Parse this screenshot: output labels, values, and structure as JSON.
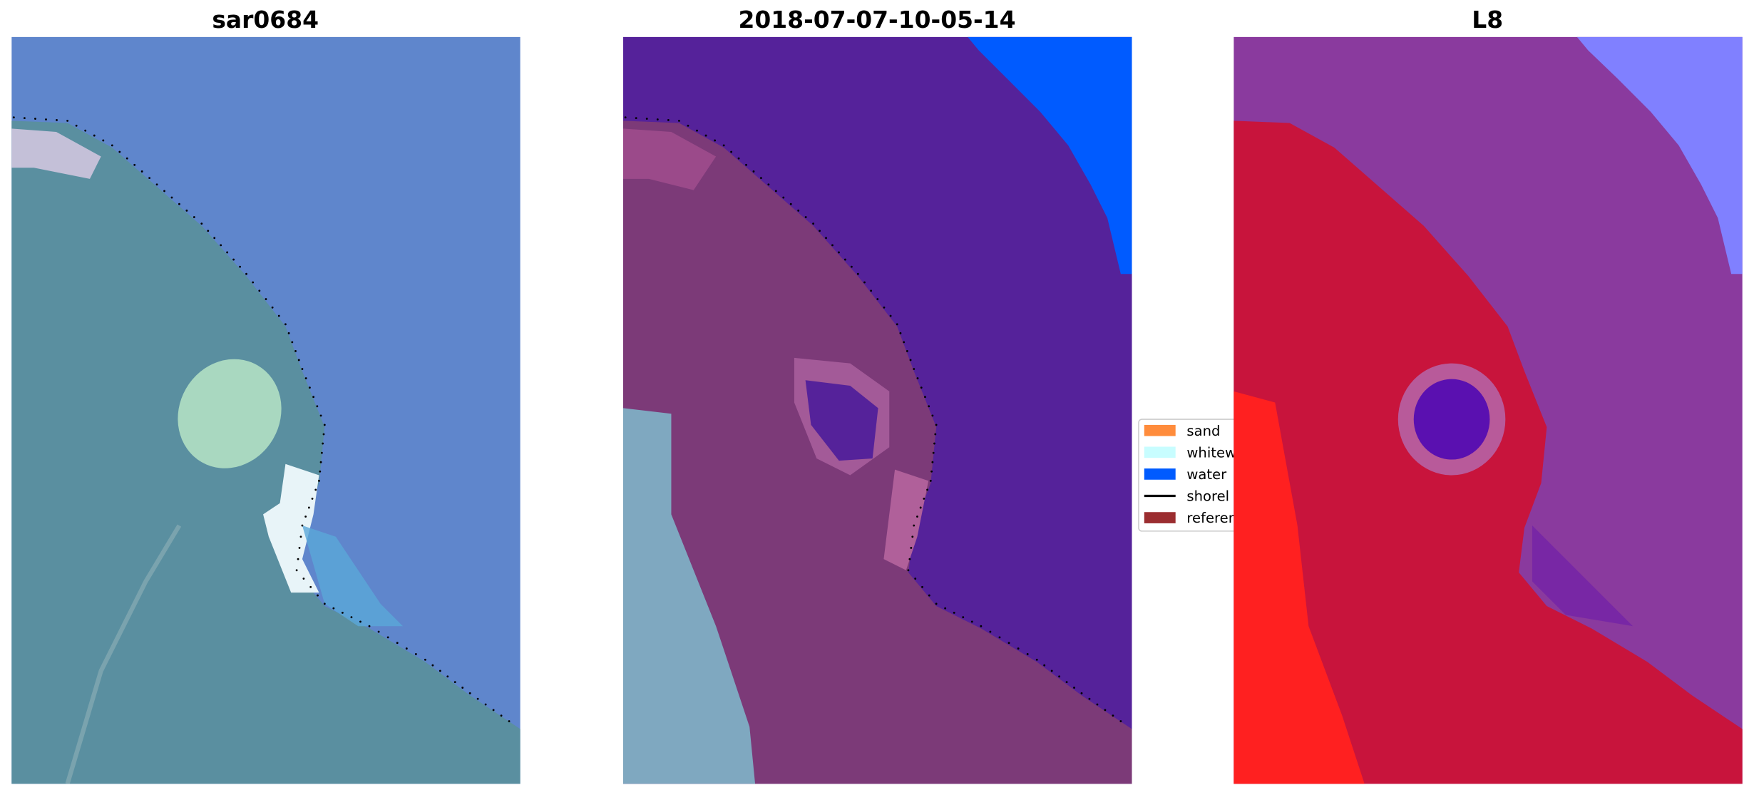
{
  "panels": [
    {
      "title": "sar0684"
    },
    {
      "title": "2018-07-07-10-05-14"
    },
    {
      "title": "L8"
    }
  ],
  "legend": {
    "items": [
      {
        "label": "sand",
        "color": "#ff8c3c",
        "kind": "patch"
      },
      {
        "label": "whitew",
        "color": "#c8fdff",
        "kind": "patch"
      },
      {
        "label": "water",
        "color": "#005bff",
        "kind": "patch"
      },
      {
        "label": "shorel",
        "color": "#000000",
        "kind": "line"
      },
      {
        "label": "referen",
        "color": "#9b2d30",
        "kind": "patch"
      }
    ]
  },
  "colors": {
    "sea_rgb": "#5f86cc",
    "land_rgb": "#5a8fa0",
    "water_class": "#55229a",
    "land_class": "#7c3a78",
    "l8_water": "#8a3a9e",
    "l8_land": "#c8143c"
  }
}
